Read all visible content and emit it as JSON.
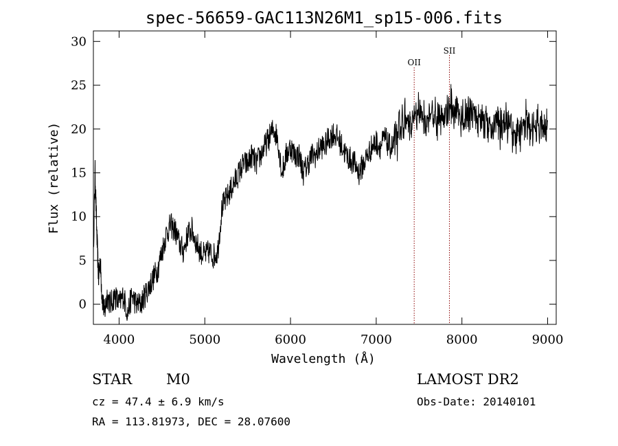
{
  "chart_data": {
    "type": "line",
    "title": "spec-56659-GAC113N26M1_sp15-006.fits",
    "xlabel": "Wavelength (Å)",
    "ylabel": "Flux (relative)",
    "xlim": [
      3700,
      9100
    ],
    "ylim": [
      -2.3,
      31.2
    ],
    "xticks": [
      4000,
      5000,
      6000,
      7000,
      8000,
      9000
    ],
    "yticks": [
      0,
      5,
      10,
      15,
      20,
      25,
      30
    ],
    "grid": false,
    "series": [
      {
        "x": [
          3700,
          3720,
          3740,
          3760,
          3780,
          3800,
          3830,
          3860,
          3900,
          3950,
          4000,
          4050,
          4100,
          4150,
          4200,
          4250,
          4300,
          4350,
          4400,
          4450,
          4500,
          4550,
          4600,
          4650,
          4700,
          4750,
          4800,
          4850,
          4900,
          4950,
          5000,
          5050,
          5100,
          5150,
          5200,
          5250,
          5300,
          5350,
          5400,
          5450,
          5500,
          5550,
          5600,
          5650,
          5700,
          5750,
          5800,
          5850,
          5900,
          5950,
          6000,
          6050,
          6100,
          6150,
          6200,
          6250,
          6300,
          6350,
          6400,
          6450,
          6500,
          6550,
          6600,
          6650,
          6700,
          6750,
          6800,
          6850,
          6900,
          6950,
          7000,
          7050,
          7100,
          7150,
          7200,
          7250,
          7300,
          7350,
          7400,
          7450,
          7500,
          7550,
          7600,
          7650,
          7700,
          7750,
          7800,
          7850,
          7900,
          7950,
          8000,
          8050,
          8100,
          8150,
          8200,
          8250,
          8300,
          8350,
          8400,
          8450,
          8500,
          8550,
          8600,
          8650,
          8700,
          8750,
          8800,
          8850,
          8900,
          8950,
          9000
        ],
        "values": [
          6,
          15,
          8,
          3,
          5,
          1,
          -1,
          1,
          0,
          1,
          0,
          1,
          -1,
          1,
          0,
          0,
          1,
          2,
          3,
          4,
          6,
          8,
          9,
          8.5,
          7,
          6,
          8,
          8.5,
          7,
          6,
          5.5,
          6,
          5.5,
          6,
          11,
          12,
          13,
          14,
          15,
          16,
          16,
          17,
          16,
          17,
          18,
          19,
          20,
          19,
          15,
          17,
          18,
          17,
          17,
          15,
          16,
          17,
          17,
          18,
          18,
          19,
          19.5,
          19,
          18,
          17,
          16.5,
          16,
          15,
          16,
          17,
          18,
          18.5,
          18,
          19,
          18,
          18,
          19,
          21,
          21,
          20,
          21,
          22,
          21,
          21,
          22,
          21,
          22,
          21,
          23,
          22,
          22,
          21,
          21,
          22,
          22,
          21,
          21,
          21,
          20,
          21,
          20,
          21,
          20,
          19,
          20,
          20,
          21,
          20,
          20,
          21,
          20,
          21
        ]
      }
    ],
    "lines": [
      {
        "label": "OII",
        "x": 7443
      },
      {
        "label": "SII",
        "x": 7854
      }
    ]
  },
  "info": {
    "class": "STAR",
    "subclass": "M0",
    "survey": "LAMOST DR2",
    "cz": "cz = 47.4 ± 6.9 km/s",
    "obsdate": "Obs-Date: 20140101",
    "coords": "RA = 113.81973, DEC =  28.07600"
  }
}
